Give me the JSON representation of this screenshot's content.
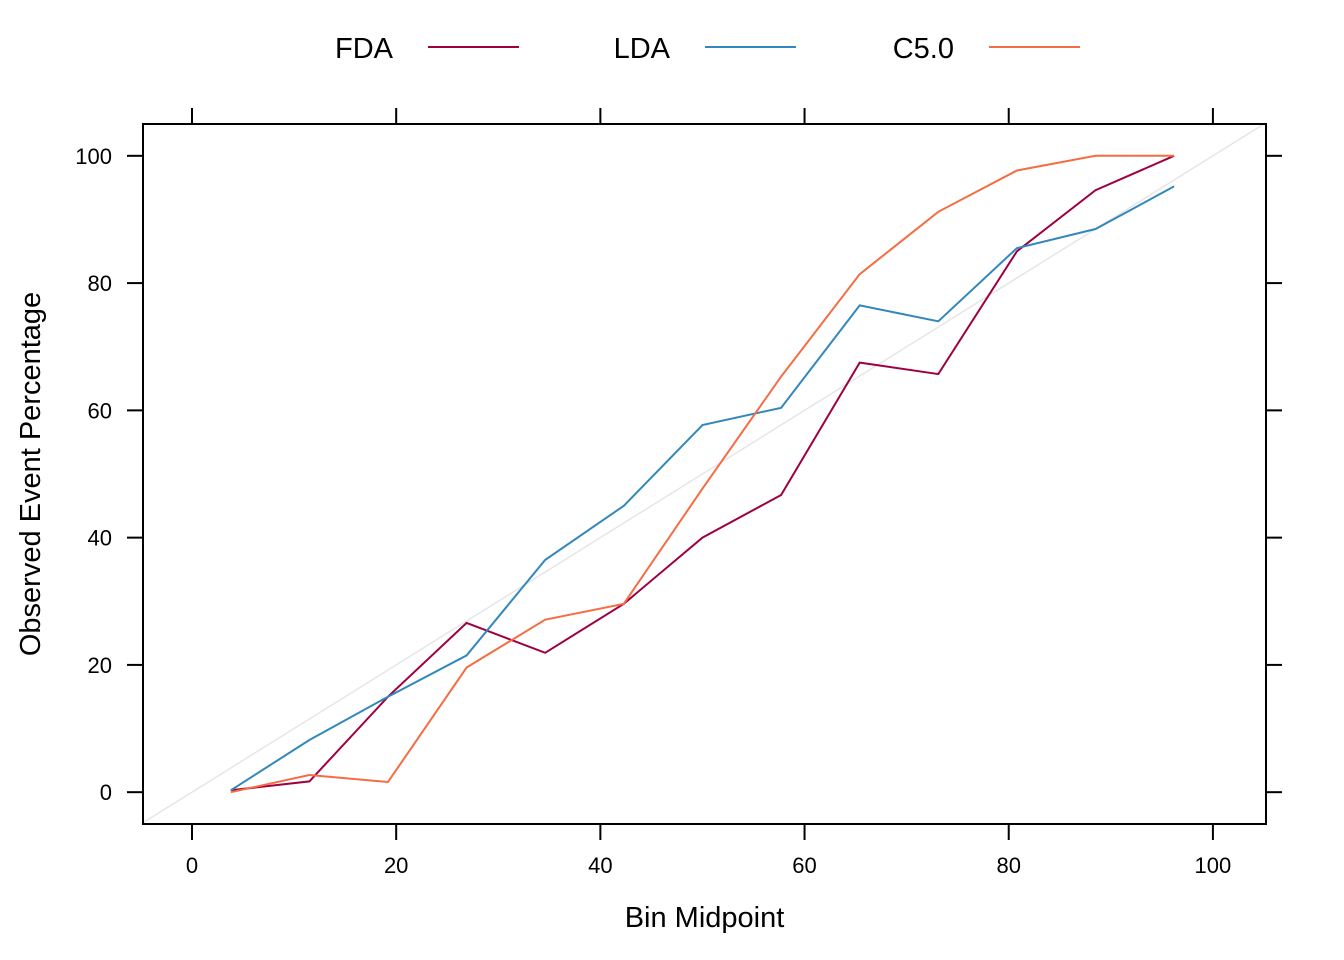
{
  "chart_data": {
    "type": "line",
    "title": "",
    "xlabel": "Bin Midpoint",
    "ylabel": "Observed Event Percentage",
    "xlim": [
      -4.8,
      105.2
    ],
    "ylim": [
      -5,
      105
    ],
    "xticks": [
      0,
      20,
      40,
      60,
      80,
      100
    ],
    "yticks": [
      0,
      20,
      40,
      60,
      80,
      100
    ],
    "grid": false,
    "legend_position": "top",
    "reference_line": {
      "from": [
        -5,
        -5
      ],
      "to": [
        105,
        105
      ],
      "color": "#e6e6e6"
    },
    "x": [
      3.8,
      11.5,
      19.2,
      26.9,
      34.6,
      42.3,
      50.0,
      57.7,
      65.4,
      73.1,
      80.8,
      88.5,
      96.2
    ],
    "series": [
      {
        "name": "FDA",
        "color": "#9e0142",
        "values": [
          0.3,
          1.7,
          15.0,
          26.6,
          21.9,
          29.6,
          40.0,
          46.7,
          67.5,
          65.7,
          85.0,
          94.6,
          100.0
        ]
      },
      {
        "name": "LDA",
        "color": "#3288bd",
        "values": [
          0.3,
          8.2,
          15.0,
          21.5,
          36.5,
          45.0,
          57.7,
          60.4,
          76.5,
          74.0,
          85.5,
          88.5,
          95.2
        ]
      },
      {
        "name": "C5.0",
        "color": "#f46d43",
        "values": [
          0.0,
          2.7,
          1.6,
          19.6,
          27.1,
          29.6,
          47.7,
          65.3,
          81.4,
          91.2,
          97.7,
          100.0,
          100.0
        ]
      }
    ]
  }
}
